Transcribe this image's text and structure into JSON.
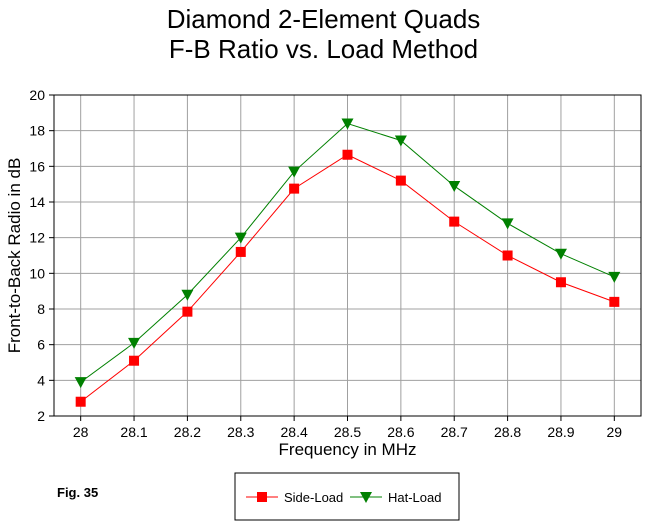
{
  "chart_data": {
    "type": "line",
    "title": "Diamond 2-Element Quads",
    "subtitle": "F-B Ratio vs. Load Method",
    "xlabel": "Frequency in MHz",
    "ylabel": "Front-to-Back Radio in dB",
    "x": [
      "28",
      "28.1",
      "28.2",
      "28.3",
      "28.4",
      "28.5",
      "28.6",
      "28.7",
      "28.8",
      "28.9",
      "29"
    ],
    "ylim": [
      2,
      20
    ],
    "yticks": [
      "2",
      "4",
      "6",
      "8",
      "10",
      "12",
      "14",
      "16",
      "18",
      "20"
    ],
    "grid": true,
    "legend_position": "bottom-center",
    "series": [
      {
        "name": "Side-Load",
        "color": "#ff0000",
        "marker": "square",
        "values": [
          2.8,
          5.1,
          7.85,
          11.2,
          14.75,
          16.65,
          15.2,
          12.9,
          11.0,
          9.5,
          8.4
        ]
      },
      {
        "name": "Hat-Load",
        "color": "#008000",
        "marker": "triangle-down",
        "values": [
          3.9,
          6.1,
          8.8,
          12.0,
          15.7,
          18.4,
          17.45,
          14.9,
          12.8,
          11.1,
          9.8
        ]
      }
    ]
  },
  "figure_label": "Fig. 35"
}
